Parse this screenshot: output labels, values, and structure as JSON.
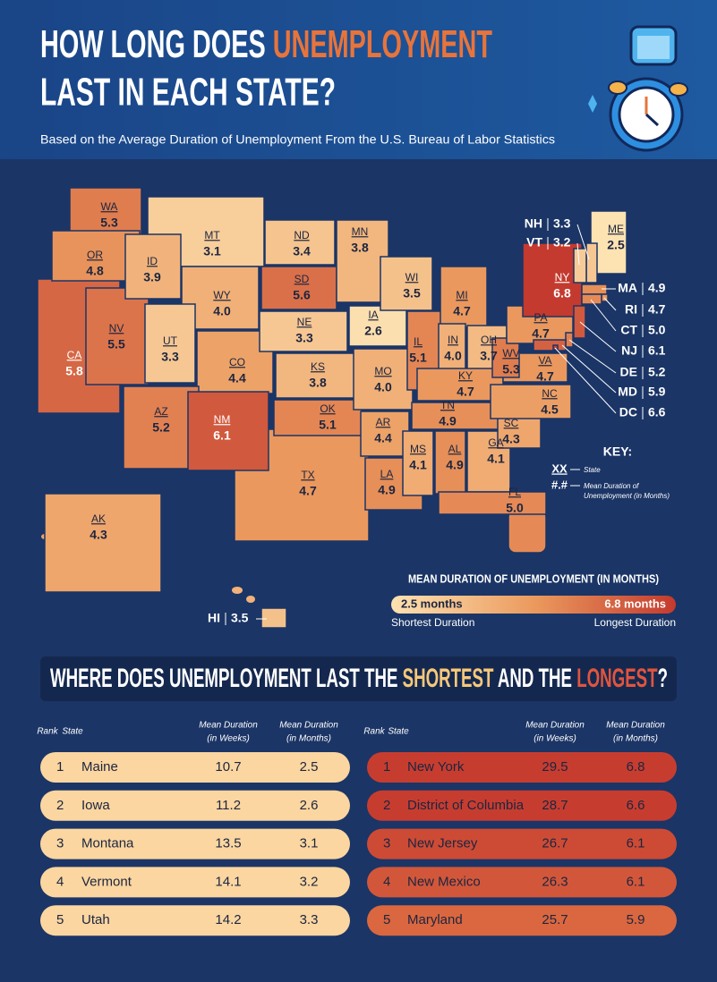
{
  "header": {
    "title_line1_a": "HOW LONG DOES ",
    "title_line1_b": "UNEMPLOYMENT",
    "title_line2": "LAST IN EACH STATE?",
    "subtitle": "Based on the Average Duration of Unemployment From the U.S. Bureau of Labor Statistics"
  },
  "map": {
    "color_scale": [
      "#fde2b2",
      "#eb9a5e",
      "#c43a2e"
    ],
    "states": [
      {
        "abbr": "TX",
        "value": 4.7,
        "label": "4.7"
      },
      {
        "abbr": "CA",
        "value": 5.8,
        "label": "5.8"
      },
      {
        "abbr": "MT",
        "value": 3.1,
        "label": "3.1"
      },
      {
        "abbr": "WA",
        "value": 5.3,
        "label": "5.3"
      },
      {
        "abbr": "OR",
        "value": 4.8,
        "label": "4.8"
      },
      {
        "abbr": "NV",
        "value": 5.5,
        "label": "5.5"
      },
      {
        "abbr": "ID",
        "value": 3.9,
        "label": "3.9"
      },
      {
        "abbr": "WY",
        "value": 4,
        "label": "4.0"
      },
      {
        "abbr": "UT",
        "value": 3.3,
        "label": "3.3"
      },
      {
        "abbr": "CO",
        "value": 4.4,
        "label": "4.4"
      },
      {
        "abbr": "AZ",
        "value": 5.2,
        "label": "5.2"
      },
      {
        "abbr": "NM",
        "value": 6.1,
        "label": "6.1"
      },
      {
        "abbr": "ND",
        "value": 3.4,
        "label": "3.4"
      },
      {
        "abbr": "SD",
        "value": 5.6,
        "label": "5.6"
      },
      {
        "abbr": "NE",
        "value": 3.3,
        "label": "3.3"
      },
      {
        "abbr": "KS",
        "value": 3.8,
        "label": "3.8"
      },
      {
        "abbr": "OK",
        "value": 5.1,
        "label": "5.1"
      },
      {
        "abbr": "MN",
        "value": 3.8,
        "label": "3.8"
      },
      {
        "abbr": "IA",
        "value": 2.6,
        "label": "2.6"
      },
      {
        "abbr": "MO",
        "value": 4,
        "label": "4.0"
      },
      {
        "abbr": "AR",
        "value": 4.4,
        "label": "4.4"
      },
      {
        "abbr": "LA",
        "value": 4.9,
        "label": "4.9"
      },
      {
        "abbr": "WI",
        "value": 3.5,
        "label": "3.5"
      },
      {
        "abbr": "IL",
        "value": 5.1,
        "label": "5.1"
      },
      {
        "abbr": "MI",
        "value": 4.7,
        "label": "4.7"
      },
      {
        "abbr": "IN",
        "value": 4,
        "label": "4.0"
      },
      {
        "abbr": "OH",
        "value": 3.7,
        "label": "3.7"
      },
      {
        "abbr": "KY",
        "value": 4.7,
        "label": "4.7"
      },
      {
        "abbr": "TN",
        "value": 4.9,
        "label": "4.9"
      },
      {
        "abbr": "MS",
        "value": 4.1,
        "label": "4.1"
      },
      {
        "abbr": "AL",
        "value": 4.9,
        "label": "4.9"
      },
      {
        "abbr": "GA",
        "value": 4.1,
        "label": "4.1"
      },
      {
        "abbr": "FL",
        "value": 5,
        "label": "5.0"
      },
      {
        "abbr": "SC",
        "value": 4.3,
        "label": "4.3"
      },
      {
        "abbr": "NC",
        "value": 4.5,
        "label": "4.5"
      },
      {
        "abbr": "VA",
        "value": 4.7,
        "label": "4.7"
      },
      {
        "abbr": "WV",
        "value": 5.3,
        "label": "5.3"
      },
      {
        "abbr": "PA",
        "value": 4.7,
        "label": "4.7"
      },
      {
        "abbr": "NY",
        "value": 6.8,
        "label": "6.8"
      },
      {
        "abbr": "ME",
        "value": 2.5,
        "label": "2.5"
      },
      {
        "abbr": "AK",
        "value": 4.3,
        "label": "4.3"
      },
      {
        "abbr": "NH",
        "value": 3.3,
        "label": "3.3"
      },
      {
        "abbr": "VT",
        "value": 3.2,
        "label": "3.2"
      },
      {
        "abbr": "MA",
        "value": 4.9,
        "label": "4.9"
      },
      {
        "abbr": "RI",
        "value": 4.7,
        "label": "4.7"
      },
      {
        "abbr": "CT",
        "value": 5,
        "label": "5.0"
      },
      {
        "abbr": "NJ",
        "value": 6.1,
        "label": "6.1"
      },
      {
        "abbr": "DE",
        "value": 5.2,
        "label": "5.2"
      },
      {
        "abbr": "MD",
        "value": 5.9,
        "label": "5.9"
      },
      {
        "abbr": "DC",
        "value": 6.6,
        "label": "6.6"
      },
      {
        "abbr": "HI",
        "value": 3.5,
        "label": "3.5"
      }
    ],
    "key": {
      "title": "KEY:",
      "abbr_sample": "XX",
      "abbr_desc": "State",
      "value_sample": "#.#",
      "value_desc_1": "Mean Duration of",
      "value_desc_2": "Unemployment (in Months)"
    },
    "legend": {
      "title": "MEAN DURATION OF UNEMPLOYMENT (IN MONTHS)",
      "min_label": "2.5 months",
      "max_label": "6.8 months",
      "min_caption": "Shortest Duration",
      "max_caption": "Longest Duration"
    }
  },
  "section": {
    "title_a": "WHERE DOES UNEMPLOYMENT LAST THE ",
    "title_b": "SHORTEST",
    "title_c": " AND THE ",
    "title_d": "LONGEST",
    "title_e": "?"
  },
  "tables": [
    {
      "header": [
        [
          "Rank"
        ],
        [
          "State"
        ],
        [
          "Mean Duration",
          "(in Weeks)"
        ],
        [
          "Mean Duration",
          "(in Months)"
        ]
      ],
      "rows": [
        [
          "1",
          "Maine",
          "10.7",
          "2.5"
        ],
        [
          "2",
          "Iowa",
          "11.2",
          "2.6"
        ],
        [
          "3",
          "Montana",
          "13.5",
          "3.1"
        ],
        [
          "4",
          "Vermont",
          "14.1",
          "3.2"
        ],
        [
          "5",
          "Utah",
          "14.2",
          "3.3"
        ]
      ]
    },
    {
      "header": [
        [
          "Rank"
        ],
        [
          "State"
        ],
        [
          "Mean Duration",
          "(in Weeks)"
        ],
        [
          "Mean Duration",
          "(in Months)"
        ]
      ],
      "rows": [
        [
          "1",
          "New York",
          "29.5",
          "6.8"
        ],
        [
          "2",
          "District of Columbia",
          "28.7",
          "6.6"
        ],
        [
          "3",
          "New Jersey",
          "26.7",
          "6.1"
        ],
        [
          "4",
          "New Mexico",
          "26.3",
          "6.1"
        ],
        [
          "5",
          "Maryland",
          "25.7",
          "5.9"
        ]
      ]
    }
  ]
}
